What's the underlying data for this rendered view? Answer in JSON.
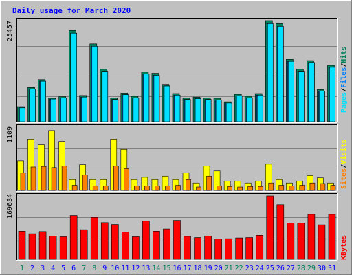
{
  "title": "Daily usage for March 2020",
  "colors": {
    "background": "#c0c0c0",
    "frame_light": "#ffffff",
    "frame_dark": "#808080",
    "title": "#0000ff",
    "day_weekday": "#0000ff",
    "day_weekend": "#00805c",
    "hits": "#00c0ff",
    "hits_shadow": "#00805c",
    "files": "#0080ff",
    "pages": "#00e0ff",
    "visits": "#ffff00",
    "sites": "#ff8000",
    "kbytes": "#ff0000",
    "gridline": "#808080"
  },
  "chart_data": [
    {
      "type": "bar",
      "name": "hits-files-pages",
      "max_label": "25457",
      "ylim": [
        0,
        25457
      ],
      "legend": [
        "Pages",
        "Files",
        "Hits"
      ],
      "categories": [
        "1",
        "2",
        "3",
        "4",
        "5",
        "6",
        "7",
        "8",
        "9",
        "10",
        "11",
        "12",
        "13",
        "14",
        "15",
        "16",
        "17",
        "18",
        "19",
        "20",
        "21",
        "22",
        "23",
        "24",
        "25",
        "26",
        "27",
        "28",
        "29",
        "30",
        "31"
      ],
      "series": [
        {
          "name": "Hits",
          "values": [
            3800,
            8600,
            10600,
            6000,
            6300,
            23000,
            6600,
            19600,
            13200,
            6000,
            7200,
            6400,
            12500,
            12200,
            9400,
            7100,
            6000,
            6200,
            6000,
            5900,
            5000,
            6900,
            6400,
            7100,
            25457,
            24700,
            15700,
            13200,
            15400,
            8100,
            14200
          ]
        },
        {
          "name": "Files",
          "values": [
            3500,
            8200,
            10200,
            5700,
            6000,
            22300,
            6200,
            19000,
            12700,
            5600,
            6800,
            6000,
            12000,
            11700,
            9000,
            6700,
            5600,
            5800,
            5600,
            5500,
            4700,
            6500,
            6000,
            6700,
            24700,
            24000,
            15200,
            12700,
            14900,
            7700,
            13700
          ]
        },
        {
          "name": "Pages",
          "values": [
            3500,
            8200,
            10200,
            5700,
            6000,
            22300,
            6200,
            19000,
            12700,
            5600,
            6800,
            6000,
            12000,
            11700,
            9000,
            6700,
            5600,
            5800,
            5600,
            5500,
            4700,
            6500,
            6000,
            6700,
            24700,
            24000,
            15200,
            12700,
            14900,
            7700,
            13700
          ]
        }
      ]
    },
    {
      "type": "bar",
      "name": "visits-sites",
      "max_label": "1109",
      "ylim": [
        0,
        1109
      ],
      "legend": [
        "Sites",
        "Visits"
      ],
      "categories": [
        "1",
        "2",
        "3",
        "4",
        "5",
        "6",
        "7",
        "8",
        "9",
        "10",
        "11",
        "12",
        "13",
        "14",
        "15",
        "16",
        "17",
        "18",
        "19",
        "20",
        "21",
        "22",
        "23",
        "24",
        "25",
        "26",
        "27",
        "28",
        "29",
        "30",
        "31"
      ],
      "series": [
        {
          "name": "Visits",
          "values": [
            520,
            900,
            800,
            1050,
            860,
            190,
            450,
            190,
            190,
            900,
            720,
            190,
            230,
            190,
            250,
            190,
            310,
            130,
            430,
            340,
            160,
            160,
            130,
            160,
            460,
            190,
            130,
            160,
            260,
            220,
            130
          ]
        },
        {
          "name": "Sites",
          "values": [
            310,
            410,
            420,
            400,
            430,
            90,
            270,
            80,
            80,
            430,
            380,
            80,
            80,
            80,
            80,
            90,
            190,
            60,
            250,
            80,
            70,
            60,
            70,
            70,
            130,
            90,
            80,
            90,
            130,
            120,
            90
          ]
        }
      ]
    },
    {
      "type": "bar",
      "name": "kbytes",
      "max_label": "169634",
      "ylim": [
        0,
        169634
      ],
      "legend": [
        "KBytes"
      ],
      "categories": [
        "1",
        "2",
        "3",
        "4",
        "5",
        "6",
        "7",
        "8",
        "9",
        "10",
        "11",
        "12",
        "13",
        "14",
        "15",
        "16",
        "17",
        "18",
        "19",
        "20",
        "21",
        "22",
        "23",
        "24",
        "25",
        "26",
        "27",
        "28",
        "29",
        "30",
        "31"
      ],
      "series": [
        {
          "name": "KBytes",
          "values": [
            75000,
            68000,
            74000,
            62000,
            60000,
            117000,
            79000,
            112000,
            98000,
            93000,
            73000,
            60000,
            102000,
            75000,
            81000,
            104000,
            61000,
            58000,
            62000,
            54000,
            55000,
            57000,
            58000,
            64000,
            169634,
            146000,
            97000,
            97000,
            120000,
            92000,
            120000
          ]
        }
      ]
    }
  ],
  "day_labels": [
    "1",
    "2",
    "3",
    "4",
    "5",
    "6",
    "7",
    "8",
    "9",
    "10",
    "11",
    "12",
    "13",
    "14",
    "15",
    "16",
    "17",
    "18",
    "19",
    "20",
    "21",
    "22",
    "23",
    "24",
    "25",
    "26",
    "27",
    "28",
    "29",
    "30",
    "31"
  ],
  "weekend_days": [
    "1",
    "7",
    "8",
    "14",
    "15",
    "21",
    "22",
    "28",
    "29"
  ]
}
